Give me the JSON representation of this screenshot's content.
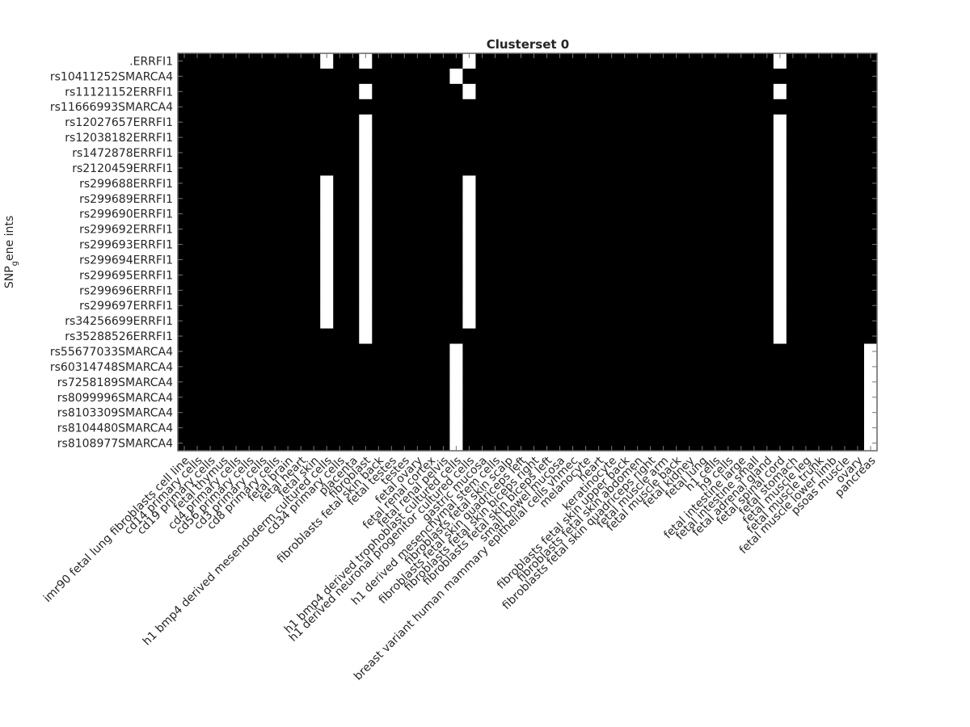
{
  "chart_data": {
    "type": "heatmap",
    "title": "Clusterset 0",
    "ylabel": "SNP_gene ints",
    "colormap": [
      "#000000",
      "#ffffff"
    ],
    "rows": [
      ".ERRFI1",
      "rs10411252SMARCA4",
      "rs11121152ERRFI1",
      "rs11666993SMARCA4",
      "rs12027657ERRFI1",
      "rs12038182ERRFI1",
      "rs1472878ERRFI1",
      "rs2120459ERRFI1",
      "rs299688ERRFI1",
      "rs299689ERRFI1",
      "rs299690ERRFI1",
      "rs299692ERRFI1",
      "rs299693ERRFI1",
      "rs299694ERRFI1",
      "rs299695ERRFI1",
      "rs299696ERRFI1",
      "rs299697ERRFI1",
      "rs34256699ERRFI1",
      "rs35288526ERRFI1",
      "rs55677033SMARCA4",
      "rs60314748SMARCA4",
      "rs7258189SMARCA4",
      "rs8099996SMARCA4",
      "rs8103309SMARCA4",
      "rs8104480SMARCA4",
      "rs8108977SMARCA4"
    ],
    "columns": [
      "imr90 fetal lung fibroblasts cell line",
      "cd14 primary cells",
      "cd19 primary cells",
      "fetal thymus",
      "cd4 primary cells",
      "cd56 primary cells",
      "cd3 primary cells",
      "cd8 primary cells",
      "fetal brain",
      "fetal heart",
      "fetal skin",
      "h1 bmp4 derived mesendoderm cultured cells",
      "cd34 primary cells",
      "placenta",
      "fibroblast",
      "fibroblasts fetal skin back",
      "fetal testes",
      "testes",
      "fetal ovary",
      "fetal renal cortex",
      "fetal renal pelvis",
      "h1 bmp4 derived trophoblast cultured cells",
      "h1 derived neuronal progenitor cultured cells",
      "gastric mucosa",
      "h1 derived mesenchymal stem cells",
      "fibroblasts fetal skin scalp",
      "fibroblasts fetal skin quadriceps left",
      "fibroblasts fetal skin biceps right",
      "fibroblasts fetal skin biceps left",
      "small bowel mucosa",
      "breast variant human mammary epithelial cells vhmec",
      "melanocyte",
      "heart",
      "keratinocyte",
      "fibroblasts fetal skin upper back",
      "fibroblasts fetal skin abdomen",
      "fibroblasts fetal skin quadriceps right",
      "fetal muscle arm",
      "fetal muscle back",
      "fetal kidney",
      "fetal lung",
      "h1 cells",
      "h9 cells",
      "fetal intestine large",
      "fetal intestine small",
      "fetal adrenal gland",
      "fetal spinal cord",
      "fetal stomach",
      "fetal muscle leg",
      "fetal muscle trunk",
      "fetal muscle lower limb",
      "psoas muscle",
      "ovary",
      "pancreas"
    ],
    "values": [
      [
        0,
        0,
        0,
        0,
        0,
        0,
        0,
        0,
        0,
        0,
        0,
        1,
        0,
        0,
        1,
        0,
        0,
        0,
        0,
        0,
        0,
        0,
        1,
        0,
        0,
        0,
        0,
        0,
        0,
        0,
        0,
        0,
        0,
        0,
        0,
        0,
        0,
        0,
        0,
        0,
        0,
        0,
        0,
        0,
        0,
        0,
        1,
        0,
        0,
        0,
        0,
        0,
        0,
        0
      ],
      [
        0,
        0,
        0,
        0,
        0,
        0,
        0,
        0,
        0,
        0,
        0,
        0,
        0,
        0,
        0,
        0,
        0,
        0,
        0,
        0,
        0,
        1,
        0,
        0,
        0,
        0,
        0,
        0,
        0,
        0,
        0,
        0,
        0,
        0,
        0,
        0,
        0,
        0,
        0,
        0,
        0,
        0,
        0,
        0,
        0,
        0,
        0,
        0,
        0,
        0,
        0,
        0,
        0,
        0
      ],
      [
        0,
        0,
        0,
        0,
        0,
        0,
        0,
        0,
        0,
        0,
        0,
        0,
        0,
        0,
        1,
        0,
        0,
        0,
        0,
        0,
        0,
        0,
        1,
        0,
        0,
        0,
        0,
        0,
        0,
        0,
        0,
        0,
        0,
        0,
        0,
        0,
        0,
        0,
        0,
        0,
        0,
        0,
        0,
        0,
        0,
        0,
        1,
        0,
        0,
        0,
        0,
        0,
        0,
        0
      ],
      [
        0,
        0,
        0,
        0,
        0,
        0,
        0,
        0,
        0,
        0,
        0,
        0,
        0,
        0,
        0,
        0,
        0,
        0,
        0,
        0,
        0,
        0,
        0,
        0,
        0,
        0,
        0,
        0,
        0,
        0,
        0,
        0,
        0,
        0,
        0,
        0,
        0,
        0,
        0,
        0,
        0,
        0,
        0,
        0,
        0,
        0,
        0,
        0,
        0,
        0,
        0,
        0,
        0,
        0
      ],
      [
        0,
        0,
        0,
        0,
        0,
        0,
        0,
        0,
        0,
        0,
        0,
        0,
        0,
        0,
        1,
        0,
        0,
        0,
        0,
        0,
        0,
        0,
        0,
        0,
        0,
        0,
        0,
        0,
        0,
        0,
        0,
        0,
        0,
        0,
        0,
        0,
        0,
        0,
        0,
        0,
        0,
        0,
        0,
        0,
        0,
        0,
        1,
        0,
        0,
        0,
        0,
        0,
        0,
        0
      ],
      [
        0,
        0,
        0,
        0,
        0,
        0,
        0,
        0,
        0,
        0,
        0,
        0,
        0,
        0,
        1,
        0,
        0,
        0,
        0,
        0,
        0,
        0,
        0,
        0,
        0,
        0,
        0,
        0,
        0,
        0,
        0,
        0,
        0,
        0,
        0,
        0,
        0,
        0,
        0,
        0,
        0,
        0,
        0,
        0,
        0,
        0,
        1,
        0,
        0,
        0,
        0,
        0,
        0,
        0
      ],
      [
        0,
        0,
        0,
        0,
        0,
        0,
        0,
        0,
        0,
        0,
        0,
        0,
        0,
        0,
        1,
        0,
        0,
        0,
        0,
        0,
        0,
        0,
        0,
        0,
        0,
        0,
        0,
        0,
        0,
        0,
        0,
        0,
        0,
        0,
        0,
        0,
        0,
        0,
        0,
        0,
        0,
        0,
        0,
        0,
        0,
        0,
        1,
        0,
        0,
        0,
        0,
        0,
        0,
        0
      ],
      [
        0,
        0,
        0,
        0,
        0,
        0,
        0,
        0,
        0,
        0,
        0,
        0,
        0,
        0,
        1,
        0,
        0,
        0,
        0,
        0,
        0,
        0,
        0,
        0,
        0,
        0,
        0,
        0,
        0,
        0,
        0,
        0,
        0,
        0,
        0,
        0,
        0,
        0,
        0,
        0,
        0,
        0,
        0,
        0,
        0,
        0,
        1,
        0,
        0,
        0,
        0,
        0,
        0,
        0
      ],
      [
        0,
        0,
        0,
        0,
        0,
        0,
        0,
        0,
        0,
        0,
        0,
        1,
        0,
        0,
        1,
        0,
        0,
        0,
        0,
        0,
        0,
        0,
        1,
        0,
        0,
        0,
        0,
        0,
        0,
        0,
        0,
        0,
        0,
        0,
        0,
        0,
        0,
        0,
        0,
        0,
        0,
        0,
        0,
        0,
        0,
        0,
        1,
        0,
        0,
        0,
        0,
        0,
        0,
        0
      ],
      [
        0,
        0,
        0,
        0,
        0,
        0,
        0,
        0,
        0,
        0,
        0,
        1,
        0,
        0,
        1,
        0,
        0,
        0,
        0,
        0,
        0,
        0,
        1,
        0,
        0,
        0,
        0,
        0,
        0,
        0,
        0,
        0,
        0,
        0,
        0,
        0,
        0,
        0,
        0,
        0,
        0,
        0,
        0,
        0,
        0,
        0,
        1,
        0,
        0,
        0,
        0,
        0,
        0,
        0
      ],
      [
        0,
        0,
        0,
        0,
        0,
        0,
        0,
        0,
        0,
        0,
        0,
        1,
        0,
        0,
        1,
        0,
        0,
        0,
        0,
        0,
        0,
        0,
        1,
        0,
        0,
        0,
        0,
        0,
        0,
        0,
        0,
        0,
        0,
        0,
        0,
        0,
        0,
        0,
        0,
        0,
        0,
        0,
        0,
        0,
        0,
        0,
        1,
        0,
        0,
        0,
        0,
        0,
        0,
        0
      ],
      [
        0,
        0,
        0,
        0,
        0,
        0,
        0,
        0,
        0,
        0,
        0,
        1,
        0,
        0,
        1,
        0,
        0,
        0,
        0,
        0,
        0,
        0,
        1,
        0,
        0,
        0,
        0,
        0,
        0,
        0,
        0,
        0,
        0,
        0,
        0,
        0,
        0,
        0,
        0,
        0,
        0,
        0,
        0,
        0,
        0,
        0,
        1,
        0,
        0,
        0,
        0,
        0,
        0,
        0
      ],
      [
        0,
        0,
        0,
        0,
        0,
        0,
        0,
        0,
        0,
        0,
        0,
        1,
        0,
        0,
        1,
        0,
        0,
        0,
        0,
        0,
        0,
        0,
        1,
        0,
        0,
        0,
        0,
        0,
        0,
        0,
        0,
        0,
        0,
        0,
        0,
        0,
        0,
        0,
        0,
        0,
        0,
        0,
        0,
        0,
        0,
        0,
        1,
        0,
        0,
        0,
        0,
        0,
        0,
        0
      ],
      [
        0,
        0,
        0,
        0,
        0,
        0,
        0,
        0,
        0,
        0,
        0,
        1,
        0,
        0,
        1,
        0,
        0,
        0,
        0,
        0,
        0,
        0,
        1,
        0,
        0,
        0,
        0,
        0,
        0,
        0,
        0,
        0,
        0,
        0,
        0,
        0,
        0,
        0,
        0,
        0,
        0,
        0,
        0,
        0,
        0,
        0,
        1,
        0,
        0,
        0,
        0,
        0,
        0,
        0
      ],
      [
        0,
        0,
        0,
        0,
        0,
        0,
        0,
        0,
        0,
        0,
        0,
        1,
        0,
        0,
        1,
        0,
        0,
        0,
        0,
        0,
        0,
        0,
        1,
        0,
        0,
        0,
        0,
        0,
        0,
        0,
        0,
        0,
        0,
        0,
        0,
        0,
        0,
        0,
        0,
        0,
        0,
        0,
        0,
        0,
        0,
        0,
        1,
        0,
        0,
        0,
        0,
        0,
        0,
        0
      ],
      [
        0,
        0,
        0,
        0,
        0,
        0,
        0,
        0,
        0,
        0,
        0,
        1,
        0,
        0,
        1,
        0,
        0,
        0,
        0,
        0,
        0,
        0,
        1,
        0,
        0,
        0,
        0,
        0,
        0,
        0,
        0,
        0,
        0,
        0,
        0,
        0,
        0,
        0,
        0,
        0,
        0,
        0,
        0,
        0,
        0,
        0,
        1,
        0,
        0,
        0,
        0,
        0,
        0,
        0
      ],
      [
        0,
        0,
        0,
        0,
        0,
        0,
        0,
        0,
        0,
        0,
        0,
        1,
        0,
        0,
        1,
        0,
        0,
        0,
        0,
        0,
        0,
        0,
        1,
        0,
        0,
        0,
        0,
        0,
        0,
        0,
        0,
        0,
        0,
        0,
        0,
        0,
        0,
        0,
        0,
        0,
        0,
        0,
        0,
        0,
        0,
        0,
        1,
        0,
        0,
        0,
        0,
        0,
        0,
        0
      ],
      [
        0,
        0,
        0,
        0,
        0,
        0,
        0,
        0,
        0,
        0,
        0,
        1,
        0,
        0,
        1,
        0,
        0,
        0,
        0,
        0,
        0,
        0,
        1,
        0,
        0,
        0,
        0,
        0,
        0,
        0,
        0,
        0,
        0,
        0,
        0,
        0,
        0,
        0,
        0,
        0,
        0,
        0,
        0,
        0,
        0,
        0,
        1,
        0,
        0,
        0,
        0,
        0,
        0,
        0
      ],
      [
        0,
        0,
        0,
        0,
        0,
        0,
        0,
        0,
        0,
        0,
        0,
        0,
        0,
        0,
        1,
        0,
        0,
        0,
        0,
        0,
        0,
        0,
        0,
        0,
        0,
        0,
        0,
        0,
        0,
        0,
        0,
        0,
        0,
        0,
        0,
        0,
        0,
        0,
        0,
        0,
        0,
        0,
        0,
        0,
        0,
        0,
        1,
        0,
        0,
        0,
        0,
        0,
        0,
        0
      ],
      [
        0,
        0,
        0,
        0,
        0,
        0,
        0,
        0,
        0,
        0,
        0,
        0,
        0,
        0,
        0,
        0,
        0,
        0,
        0,
        0,
        0,
        1,
        0,
        0,
        0,
        0,
        0,
        0,
        0,
        0,
        0,
        0,
        0,
        0,
        0,
        0,
        0,
        0,
        0,
        0,
        0,
        0,
        0,
        0,
        0,
        0,
        0,
        0,
        0,
        0,
        0,
        0,
        0,
        1
      ],
      [
        0,
        0,
        0,
        0,
        0,
        0,
        0,
        0,
        0,
        0,
        0,
        0,
        0,
        0,
        0,
        0,
        0,
        0,
        0,
        0,
        0,
        1,
        0,
        0,
        0,
        0,
        0,
        0,
        0,
        0,
        0,
        0,
        0,
        0,
        0,
        0,
        0,
        0,
        0,
        0,
        0,
        0,
        0,
        0,
        0,
        0,
        0,
        0,
        0,
        0,
        0,
        0,
        0,
        1
      ],
      [
        0,
        0,
        0,
        0,
        0,
        0,
        0,
        0,
        0,
        0,
        0,
        0,
        0,
        0,
        0,
        0,
        0,
        0,
        0,
        0,
        0,
        1,
        0,
        0,
        0,
        0,
        0,
        0,
        0,
        0,
        0,
        0,
        0,
        0,
        0,
        0,
        0,
        0,
        0,
        0,
        0,
        0,
        0,
        0,
        0,
        0,
        0,
        0,
        0,
        0,
        0,
        0,
        0,
        1
      ],
      [
        0,
        0,
        0,
        0,
        0,
        0,
        0,
        0,
        0,
        0,
        0,
        0,
        0,
        0,
        0,
        0,
        0,
        0,
        0,
        0,
        0,
        1,
        0,
        0,
        0,
        0,
        0,
        0,
        0,
        0,
        0,
        0,
        0,
        0,
        0,
        0,
        0,
        0,
        0,
        0,
        0,
        0,
        0,
        0,
        0,
        0,
        0,
        0,
        0,
        0,
        0,
        0,
        0,
        1
      ],
      [
        0,
        0,
        0,
        0,
        0,
        0,
        0,
        0,
        0,
        0,
        0,
        0,
        0,
        0,
        0,
        0,
        0,
        0,
        0,
        0,
        0,
        1,
        0,
        0,
        0,
        0,
        0,
        0,
        0,
        0,
        0,
        0,
        0,
        0,
        0,
        0,
        0,
        0,
        0,
        0,
        0,
        0,
        0,
        0,
        0,
        0,
        0,
        0,
        0,
        0,
        0,
        0,
        0,
        1
      ],
      [
        0,
        0,
        0,
        0,
        0,
        0,
        0,
        0,
        0,
        0,
        0,
        0,
        0,
        0,
        0,
        0,
        0,
        0,
        0,
        0,
        0,
        1,
        0,
        0,
        0,
        0,
        0,
        0,
        0,
        0,
        0,
        0,
        0,
        0,
        0,
        0,
        0,
        0,
        0,
        0,
        0,
        0,
        0,
        0,
        0,
        0,
        0,
        0,
        0,
        0,
        0,
        0,
        0,
        1
      ],
      [
        0,
        0,
        0,
        0,
        0,
        0,
        0,
        0,
        0,
        0,
        0,
        0,
        0,
        0,
        0,
        0,
        0,
        0,
        0,
        0,
        0,
        1,
        0,
        0,
        0,
        0,
        0,
        0,
        0,
        0,
        0,
        0,
        0,
        0,
        0,
        0,
        0,
        0,
        0,
        0,
        0,
        0,
        0,
        0,
        0,
        0,
        0,
        0,
        0,
        0,
        0,
        0,
        0,
        1
      ]
    ]
  }
}
